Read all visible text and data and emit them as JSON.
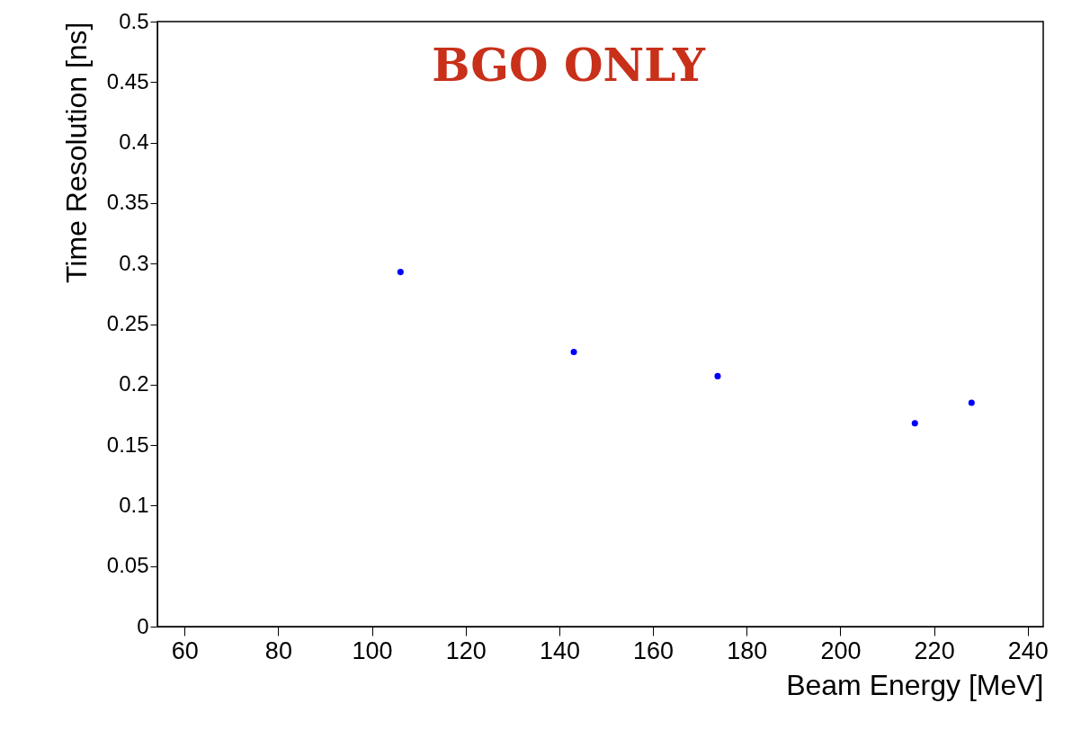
{
  "chart_data": {
    "type": "scatter",
    "xlabel": "Beam Energy [MeV]",
    "ylabel": "Time Resolution [ns]",
    "annotations": [
      "BGO ONLY"
    ],
    "x": [
      106.1,
      143.1,
      173.8,
      215.9,
      228
    ],
    "series": [
      {
        "color": "#0000ff",
        "values": [
          0.293,
          0.227,
          0.207,
          0.168,
          0.185
        ]
      }
    ],
    "xlim": [
      54.2,
      243.3
    ],
    "xticks": [
      60,
      80,
      100,
      120,
      140,
      160,
      180,
      200,
      220,
      240
    ],
    "ylim": [
      0,
      0.5
    ],
    "yticks": [
      0,
      0.05,
      0.1,
      0.15,
      0.2,
      0.25,
      0.3,
      0.35,
      0.4,
      0.45,
      0.5
    ],
    "grid": false,
    "marker": "circle"
  }
}
